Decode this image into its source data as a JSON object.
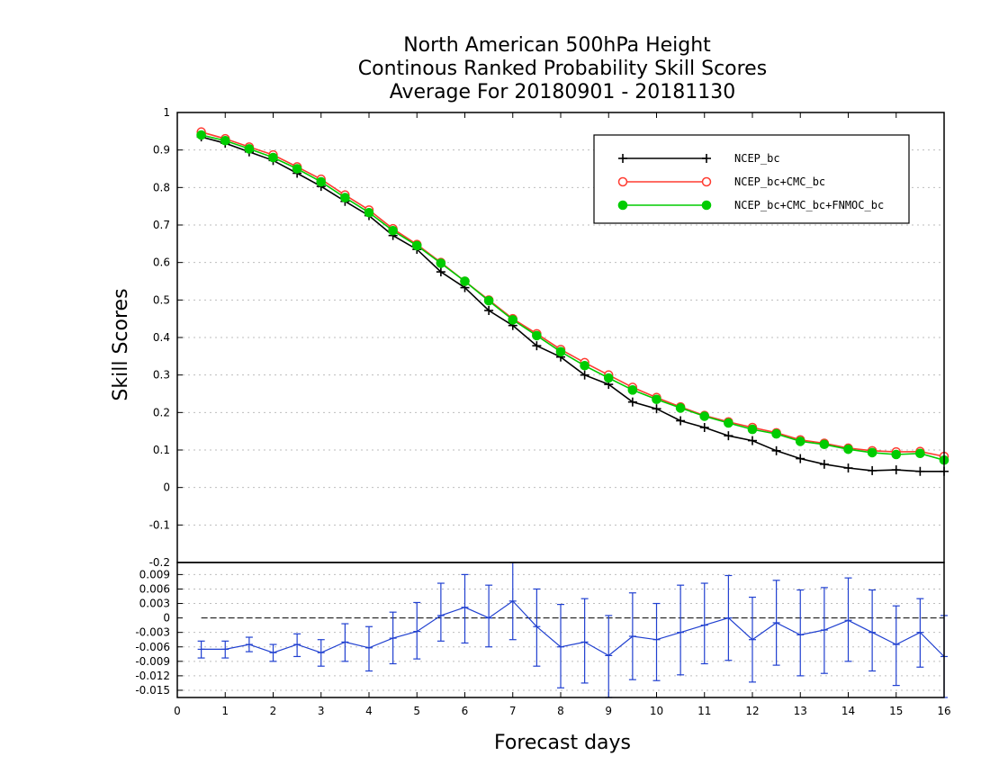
{
  "chart_data": [
    {
      "type": "line",
      "title": [
        "North American 500hPa Height",
        "Continous Ranked Probability Skill Scores",
        "Average For 20180901 - 20181130"
      ],
      "ylabel": "Skill Scores",
      "ylim": [
        -0.2,
        1.0
      ],
      "yticks": [
        -0.2,
        -0.1,
        0,
        0.1,
        0.2,
        0.3,
        0.4,
        0.5,
        0.6,
        0.7,
        0.8,
        0.9,
        1.0
      ],
      "ytick_labels": [
        "-0.2",
        "-0.1",
        "0",
        "0.1",
        "0.2",
        "0.3",
        "0.4",
        "0.5",
        "0.6",
        "0.7",
        "0.8",
        "0.9",
        "1"
      ],
      "xlim": [
        0,
        16
      ],
      "grid": true,
      "legend_position": "top-right",
      "x": [
        0.5,
        1.0,
        1.5,
        2.0,
        2.5,
        3.0,
        3.5,
        4.0,
        4.5,
        5.0,
        5.5,
        6.0,
        6.5,
        7.0,
        7.5,
        8.0,
        8.5,
        9.0,
        9.5,
        10.0,
        10.5,
        11.0,
        11.5,
        12.0,
        12.5,
        13.0,
        13.5,
        14.0,
        14.5,
        15.0,
        15.5,
        16.0
      ],
      "series": [
        {
          "name": "NCEP_bc",
          "color": "#000000",
          "marker": "plus",
          "values": [
            0.935,
            0.918,
            0.895,
            0.872,
            0.838,
            0.803,
            0.763,
            0.725,
            0.672,
            0.635,
            0.575,
            0.533,
            0.472,
            0.432,
            0.378,
            0.348,
            0.3,
            0.275,
            0.228,
            0.21,
            0.178,
            0.16,
            0.138,
            0.125,
            0.098,
            0.077,
            0.062,
            0.052,
            0.045,
            0.047,
            0.043,
            0.043
          ]
        },
        {
          "name": "NCEP_bc+CMC_bc",
          "color": "#ff3b30",
          "marker": "open-circle",
          "values": [
            0.948,
            0.93,
            0.908,
            0.887,
            0.855,
            0.822,
            0.78,
            0.74,
            0.69,
            0.648,
            0.6,
            0.55,
            0.5,
            0.45,
            0.41,
            0.368,
            0.333,
            0.3,
            0.267,
            0.24,
            0.215,
            0.192,
            0.175,
            0.16,
            0.146,
            0.127,
            0.118,
            0.105,
            0.098,
            0.095,
            0.096,
            0.083
          ]
        },
        {
          "name": "NCEP_bc+CMC_bc+FNMOC_bc",
          "color": "#00cc00",
          "marker": "filled-circle",
          "values": [
            0.94,
            0.925,
            0.903,
            0.88,
            0.85,
            0.815,
            0.773,
            0.733,
            0.685,
            0.645,
            0.598,
            0.55,
            0.498,
            0.447,
            0.405,
            0.362,
            0.325,
            0.292,
            0.26,
            0.235,
            0.212,
            0.19,
            0.172,
            0.155,
            0.143,
            0.123,
            0.115,
            0.102,
            0.093,
            0.088,
            0.091,
            0.073
          ]
        }
      ]
    },
    {
      "type": "line",
      "xlabel": "Forecast days",
      "ylim": [
        -0.0165,
        0.0115
      ],
      "yticks": [
        -0.015,
        -0.012,
        -0.009,
        -0.006,
        -0.003,
        0,
        0.003,
        0.006,
        0.009
      ],
      "ytick_labels": [
        "-0.015",
        "-0.012",
        "-0.009",
        "-0.006",
        "-0.003",
        "0",
        "0.003",
        "0.006",
        "0.009"
      ],
      "xlim": [
        0,
        16
      ],
      "xticks": [
        0,
        1,
        2,
        3,
        4,
        5,
        6,
        7,
        8,
        9,
        10,
        11,
        12,
        13,
        14,
        15,
        16
      ],
      "xtick_labels": [
        "0",
        "1",
        "2",
        "3",
        "4",
        "5",
        "6",
        "7",
        "8",
        "9",
        "10",
        "11",
        "12",
        "13",
        "14",
        "15",
        "16"
      ],
      "grid": true,
      "zero_line": true,
      "series": [
        {
          "color": "#2040d0",
          "x": [
            0.5,
            1.0,
            1.5,
            2.0,
            2.5,
            3.0,
            3.5,
            4.0,
            4.5,
            5.0,
            5.5,
            6.0,
            6.5,
            7.0,
            7.5,
            8.0,
            8.5,
            9.0,
            9.5,
            10.0,
            10.5,
            11.0,
            11.5,
            12.0,
            12.5,
            13.0,
            13.5,
            14.0,
            14.5,
            15.0,
            15.5,
            16.0
          ],
          "values": [
            -0.0065,
            -0.0065,
            -0.0055,
            -0.0072,
            -0.0055,
            -0.0072,
            -0.005,
            -0.0062,
            -0.0042,
            -0.0028,
            0.0005,
            0.0022,
            0.0,
            0.0035,
            -0.0018,
            -0.006,
            -0.005,
            -0.0078,
            -0.0038,
            -0.0045,
            -0.003,
            -0.0015,
            0.0,
            -0.0045,
            -0.001,
            -0.0035,
            -0.0025,
            -0.0005,
            -0.003,
            -0.0055,
            -0.003,
            -0.008
          ],
          "err_low": [
            -0.0083,
            -0.0083,
            -0.007,
            -0.009,
            -0.008,
            -0.01,
            -0.009,
            -0.011,
            -0.0095,
            -0.0085,
            -0.0048,
            -0.0052,
            -0.006,
            -0.0045,
            -0.01,
            -0.0145,
            -0.0135,
            -0.0165,
            -0.0128,
            -0.013,
            -0.0118,
            -0.0095,
            -0.0088,
            -0.0133,
            -0.0098,
            -0.012,
            -0.0115,
            -0.009,
            -0.011,
            -0.014,
            -0.0102,
            -0.0165
          ],
          "err_high": [
            -0.0048,
            -0.0048,
            -0.004,
            -0.0055,
            -0.0033,
            -0.0045,
            -0.0012,
            -0.0018,
            0.0012,
            0.0032,
            0.0072,
            0.009,
            0.0068,
            0.0115,
            0.006,
            0.0028,
            0.004,
            0.0005,
            0.0052,
            0.003,
            0.0068,
            0.0072,
            0.0088,
            0.0043,
            0.0078,
            0.0058,
            0.0063,
            0.0083,
            0.0058,
            0.0025,
            0.004,
            0.0005
          ]
        }
      ]
    }
  ]
}
